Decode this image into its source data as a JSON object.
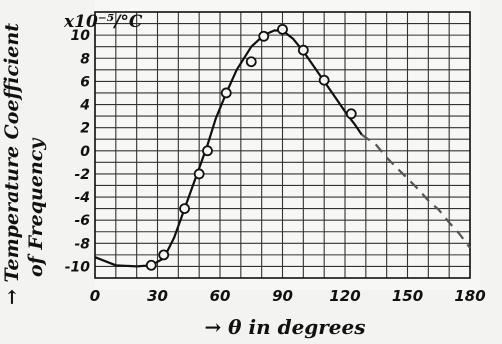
{
  "chart_data": {
    "type": "scatter",
    "title": "",
    "xlabel": "→ θ in degrees",
    "ylabel": "→ Temperature Coefficient of Frequency",
    "unit_label": "x10⁻⁵/°C",
    "xlim": [
      0,
      180
    ],
    "ylim": [
      -11,
      12
    ],
    "grid": true,
    "x_ticks": [
      {
        "value": 0,
        "label": "0"
      },
      {
        "value": 30,
        "label": "30"
      },
      {
        "value": 60,
        "label": "60"
      },
      {
        "value": 90,
        "label": "90"
      },
      {
        "value": 120,
        "label": "120"
      },
      {
        "value": 150,
        "label": "150"
      },
      {
        "value": 180,
        "label": "180"
      }
    ],
    "y_ticks": [
      {
        "value": 10,
        "label": "10"
      },
      {
        "value": 8,
        "label": "8"
      },
      {
        "value": 6,
        "label": "6"
      },
      {
        "value": 4,
        "label": "4"
      },
      {
        "value": 2,
        "label": "2"
      },
      {
        "value": 0,
        "label": "0"
      },
      {
        "value": -2,
        "label": "-2"
      },
      {
        "value": -4,
        "label": "-4"
      },
      {
        "value": -6,
        "label": "-6"
      },
      {
        "value": -8,
        "label": "-8"
      },
      {
        "value": -10,
        "label": "-10"
      }
    ],
    "series": [
      {
        "kind": "points",
        "x": [
          27,
          33,
          43,
          50,
          54,
          63,
          75,
          81,
          90,
          100,
          110,
          123
        ],
        "y": [
          -9.9,
          -9,
          -5,
          -2,
          0,
          5,
          7.7,
          9.9,
          10.5,
          8.7,
          6.1,
          3.2
        ]
      },
      {
        "kind": "solid-curve",
        "x": [
          0,
          10,
          20,
          27,
          33,
          38,
          43,
          47,
          50,
          54,
          58,
          63,
          68,
          75,
          81,
          86,
          90,
          95,
          100,
          105,
          110,
          115,
          120,
          125,
          128
        ],
        "y": [
          -9.2,
          -9.9,
          -10,
          -9.9,
          -9.3,
          -7.5,
          -5,
          -3,
          -1.5,
          0.5,
          2.8,
          5,
          7,
          9,
          10,
          10.4,
          10.4,
          9.7,
          8.6,
          7.3,
          6,
          4.7,
          3.4,
          2.2,
          1.4
        ]
      },
      {
        "kind": "dashed-curve",
        "x": [
          128,
          135,
          140,
          145,
          150,
          155,
          160,
          165,
          170,
          175,
          180
        ],
        "y": [
          1.4,
          0.5,
          -0.6,
          -1.5,
          -2.4,
          -3.3,
          -4.3,
          -5.1,
          -6.2,
          -7.2,
          -8.4
        ]
      }
    ]
  }
}
